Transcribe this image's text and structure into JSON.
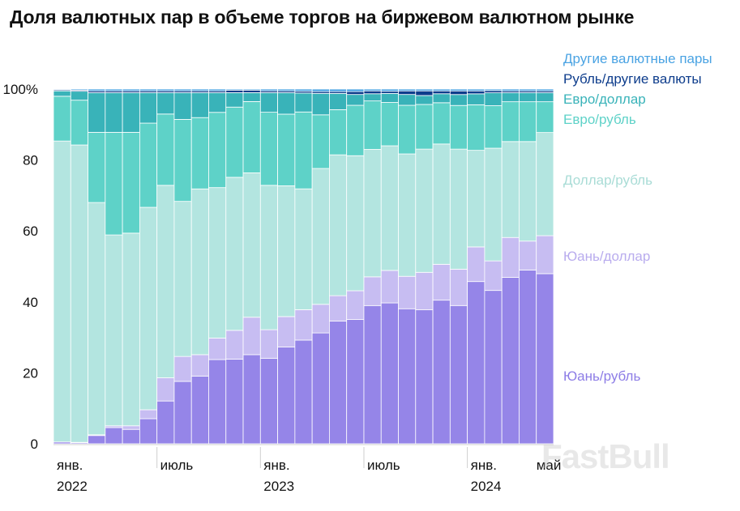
{
  "chart_data": {
    "type": "bar",
    "stacked": true,
    "percent": true,
    "title": "Доля валютных пар в объеме торгов на биржевом валютном рынке",
    "ylim": [
      0,
      100
    ],
    "y_ticks": [
      "0",
      "20",
      "40",
      "60",
      "80",
      "100%"
    ],
    "grid": false,
    "legend_placement": "right",
    "x_tick_labels": [
      {
        "index": 0,
        "line1": "янв.",
        "line2": "2022"
      },
      {
        "index": 6,
        "line1": "июль",
        "line2": ""
      },
      {
        "index": 12,
        "line1": "янв.",
        "line2": "2023"
      },
      {
        "index": 18,
        "line1": "июль",
        "line2": ""
      },
      {
        "index": 24,
        "line1": "янв.",
        "line2": "2024"
      },
      {
        "index": 28,
        "line1": "май",
        "line2": ""
      }
    ],
    "series": [
      {
        "name": "Юань/рубль",
        "color": "#9585e8",
        "values": [
          0.5,
          0.3,
          2.3,
          4.5,
          4.0,
          7.0,
          12.0,
          17.5,
          19.0,
          23.5,
          23.5,
          25.0,
          24.0,
          27.0,
          29.0,
          31.0,
          34.0,
          34.5,
          38.5,
          39.0,
          37.5,
          37.5,
          40.0,
          38.0,
          44.5,
          41.5,
          46.0,
          48.0,
          47.0
        ]
      },
      {
        "name": "Юань/доллар",
        "color": "#c7bdf2",
        "values": [
          0.0,
          0.1,
          0.2,
          0.5,
          1.0,
          2.5,
          6.5,
          7.0,
          6.0,
          6.0,
          8.0,
          10.5,
          8.0,
          8.5,
          8.5,
          8.0,
          7.0,
          8.0,
          8.0,
          9.0,
          9.0,
          10.5,
          10.0,
          10.0,
          9.5,
          8.0,
          11.0,
          8.0,
          10.5
        ]
      },
      {
        "name": "Доллар/рубль",
        "color": "#b3e5e0",
        "values": [
          84.0,
          83.0,
          64.5,
          53.0,
          53.5,
          56.5,
          54.0,
          43.5,
          46.5,
          42.0,
          42.5,
          40.5,
          40.5,
          36.5,
          33.8,
          38.0,
          39.0,
          37.5,
          35.5,
          34.5,
          34.0,
          34.5,
          33.5,
          33.0,
          26.5,
          30.5,
          26.5,
          27.5,
          28.5
        ]
      },
      {
        "name": "Евро/рубль",
        "color": "#5ed2c8",
        "values": [
          12.5,
          12.5,
          19.5,
          28.5,
          28.0,
          23.5,
          20.0,
          23.0,
          20.0,
          21.0,
          19.5,
          20.0,
          20.5,
          20.0,
          21.5,
          15.0,
          12.5,
          14.0,
          13.5,
          12.0,
          13.5,
          12.5,
          11.5,
          12.0,
          12.5,
          11.5,
          11.0,
          11.0,
          8.5
        ]
      },
      {
        "name": "Евро/доллар",
        "color": "#39b3b9",
        "values": [
          1.5,
          2.5,
          11.0,
          11.0,
          11.0,
          8.5,
          6.0,
          7.5,
          7.0,
          5.5,
          4.0,
          2.5,
          5.5,
          6.0,
          5.3,
          6.0,
          4.5,
          3.0,
          2.0,
          2.5,
          3.0,
          2.5,
          2.5,
          3.0,
          3.0,
          3.5,
          2.5,
          2.5,
          2.5
        ]
      },
      {
        "name": "Рубль/другие валюты",
        "color": "#0e3d8c",
        "values": [
          0.3,
          0.3,
          0.5,
          0.5,
          0.5,
          0.5,
          0.5,
          0.5,
          0.5,
          0.5,
          0.7,
          0.7,
          0.5,
          0.5,
          0.5,
          0.5,
          0.5,
          0.8,
          0.8,
          0.6,
          1.0,
          1.3,
          0.8,
          1.0,
          0.8,
          0.6,
          0.5,
          0.5,
          0.5
        ]
      },
      {
        "name": "Другие валютные пары",
        "color": "#4aa3e3",
        "values": [
          0.2,
          0.3,
          0.5,
          0.5,
          0.5,
          0.5,
          0.5,
          0.5,
          0.5,
          0.5,
          0.3,
          0.3,
          0.5,
          0.5,
          0.6,
          0.7,
          0.7,
          0.7,
          0.5,
          0.6,
          0.5,
          0.5,
          0.5,
          0.5,
          0.5,
          0.4,
          0.5,
          0.5,
          0.5
        ]
      }
    ],
    "legend": [
      {
        "label": "Другие валютные пары",
        "color": "#4aa3e3"
      },
      {
        "label": "Рубль/другие валюты",
        "color": "#0e3d8c"
      },
      {
        "label": "Евро/доллар",
        "color": "#39b3b9"
      },
      {
        "label": "Евро/рубль",
        "color": "#5ed2c8"
      },
      {
        "label": "Доллар/рубль",
        "color": "#a9dcd6"
      },
      {
        "label": "Юань/доллар",
        "color": "#b9acee"
      },
      {
        "label": "Юань/рубль",
        "color": "#8d7de6"
      }
    ]
  },
  "watermark": "FastBull"
}
